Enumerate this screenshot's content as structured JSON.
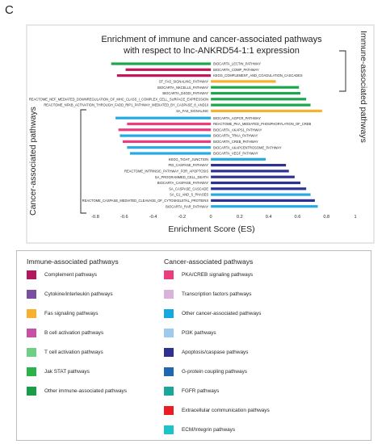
{
  "panel_label": "C",
  "chart_data": {
    "type": "bar",
    "orientation": "horizontal",
    "title_line1": "Enrichment of immune and cancer-associated pathways",
    "title_line2": "with respect to lnc-ANKRD54-1:1 expression",
    "xlabel": "Enrichment Score (ES)",
    "xlim": [
      -0.8,
      1
    ],
    "xticks": [
      "-0.8",
      "-0.6",
      "-0.4",
      "-0.2",
      "0",
      "0.2",
      "0.4",
      "0.6",
      "0.8",
      "1"
    ],
    "xtick_values": [
      -0.8,
      -0.6,
      -0.4,
      -0.2,
      0,
      0.2,
      0.4,
      0.6,
      0.8,
      1
    ],
    "group_labels": {
      "immune": "Immune-associated pathways",
      "cancer": "Cancer-associated pathways"
    },
    "categories": [
      "BIOCARTA_LECTIN_PATHWAY",
      "BIOCARTA_COMP_PATHWAY",
      "KEGG_COMPLEMENT_AND_COAGULATION_CASCADES",
      "ST_FAS_SIGNALING_PATHWAY",
      "BIOCARTA_NKCELLS_PATHWAY",
      "BIOCARTA_D4GDI_PATHWAY",
      "REACTOME_NEF_MEDIATED_DOWNREGULATION_OF_MHC_CLASS_I_COMPLEX_CELL_SURFACE_EXPRESSION",
      "REACTOME_NFKB_ACTIVATION_THROUGH_FADD_RIP1_PATHWAY_MEDIATED_BY_CASPASE_8_AND10",
      "SA_FAS_SIGNALING",
      "BIOCARTA_AGPCR_PATHWAY",
      "REACTOME_PKA_MEDIATED_PHOSPHORYLATION_OF_CREB",
      "BIOCARTA_AKAPS1_PATHWAY",
      "BIOCARTA_TRKA_PATHWAY",
      "BIOCARTA_CREB_PATHWAY",
      "BIOCARTA_AKAPCENTROSOME_PATHWAY",
      "BIOCARTA_VEGF_PATHWAY",
      "KEGG_TIGHT_JUNCTION",
      "PID_CASPASE_PATHWAY",
      "REACTOME_INTRINSIC_PATHWAY_FOR_APOPTOSIS",
      "SA_PROGRAMMED_CELL_DEATH",
      "BIOCARTA_CASPASE_PATHWAY",
      "SA_CASPASE_CASCADE",
      "SA_G1_AND_S_PHASES",
      "REACTOME_CASPASE_MEDIATED_CLEAVAGE_OF_CYTOSKELETAL_PROTEINS",
      "BIOCARTA_RAR_PATHWAY"
    ],
    "values": [
      -0.69,
      -0.59,
      -0.65,
      0.45,
      0.61,
      0.62,
      0.66,
      0.69,
      0.77,
      -0.66,
      -0.58,
      -0.64,
      -0.63,
      -0.61,
      -0.58,
      -0.56,
      0.38,
      0.52,
      0.54,
      0.58,
      0.62,
      0.66,
      0.69,
      0.72,
      0.74
    ],
    "bar_colors": [
      "#1aa64a",
      "#c4185d",
      "#c4185d",
      "#f7b12e",
      "#1aa64a",
      "#1aa64a",
      "#1aa64a",
      "#1aa64a",
      "#f7b12e",
      "#27aae1",
      "#ec3c7e",
      "#ec3c7e",
      "#27aae1",
      "#ec3c7e",
      "#27aae1",
      "#27aae1",
      "#27aae1",
      "#2e3192",
      "#2e3192",
      "#2e3192",
      "#2e3192",
      "#2e3192",
      "#27aae1",
      "#2e3192",
      "#27aae1"
    ]
  },
  "legend": {
    "immune_title": "Immune-associated pathways",
    "cancer_title": "Cancer-associated pathways",
    "immune_items": [
      {
        "label": "Complement pathways",
        "color": "#b5175e"
      },
      {
        "label": "Cytokine/interleukin pathways",
        "color": "#7b4fa0"
      },
      {
        "label": "Fas signaling pathways",
        "color": "#f7b12e"
      },
      {
        "label": "B cell activation pathways",
        "color": "#c552a6"
      },
      {
        "label": "T cell activation pathways",
        "color": "#6fcf85"
      },
      {
        "label": "Jak STAT pathways",
        "color": "#2bb34a"
      },
      {
        "label": "Other immune-associated pathways",
        "color": "#1a9d48"
      }
    ],
    "cancer_items": [
      {
        "label": "PKA/CREB signaling pathways",
        "color": "#ec3c7e"
      },
      {
        "label": "Transcription factors pathways",
        "color": "#d9b3d9"
      },
      {
        "label": "Other cancer-associated pathways",
        "color": "#14a9e0"
      },
      {
        "label": "PI3K pathways",
        "color": "#9ccbee"
      },
      {
        "label": "Apoptosis/caspase pathways",
        "color": "#2e3192"
      },
      {
        "label": "G-protein coupling pathways",
        "color": "#1f67b1"
      },
      {
        "label": "FGFR pathways",
        "color": "#1aa79a"
      },
      {
        "label": "Extracellular communication pathways",
        "color": "#ed1c24"
      },
      {
        "label": "ECM/Integrin pathways",
        "color": "#1cc3c9"
      }
    ]
  }
}
